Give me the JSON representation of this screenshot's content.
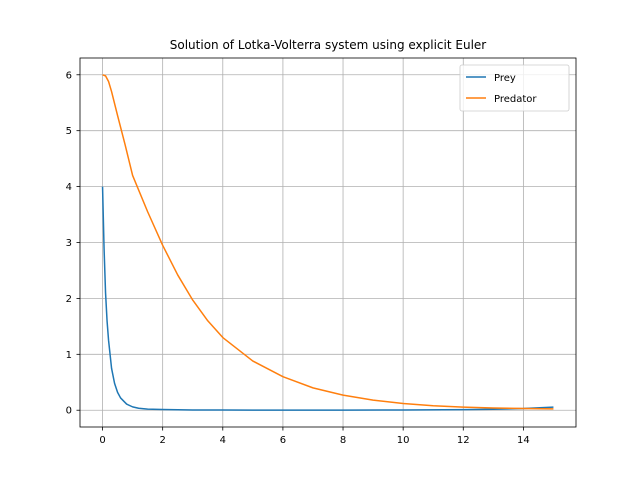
{
  "chart_data": {
    "type": "line",
    "title": "Solution of Lotka-Volterra system using explicit Euler",
    "xlabel": "",
    "ylabel": "",
    "xlim": [
      -0.75,
      15.75
    ],
    "ylim": [
      -0.3,
      6.3
    ],
    "xticks": [
      0,
      2,
      4,
      6,
      8,
      10,
      12,
      14
    ],
    "yticks": [
      0,
      1,
      2,
      3,
      4,
      5,
      6
    ],
    "grid": true,
    "legend_position": "top-right",
    "series": [
      {
        "name": "Prey",
        "color": "#1f77b4",
        "x": [
          0,
          0.05,
          0.1,
          0.15,
          0.2,
          0.3,
          0.4,
          0.5,
          0.6,
          0.8,
          1.0,
          1.2,
          1.5,
          2.0,
          2.5,
          3,
          4,
          5,
          6,
          8,
          10,
          12,
          13,
          14,
          15
        ],
        "y": [
          4.0,
          2.9,
          2.1,
          1.6,
          1.25,
          0.75,
          0.48,
          0.32,
          0.22,
          0.11,
          0.06,
          0.035,
          0.02,
          0.012,
          0.008,
          0.005,
          0.003,
          0.002,
          0.002,
          0.002,
          0.004,
          0.01,
          0.018,
          0.03,
          0.055
        ]
      },
      {
        "name": "Predator",
        "color": "#ff7f0e",
        "x": [
          0,
          0.1,
          0.2,
          0.3,
          0.5,
          0.75,
          1,
          1.5,
          2,
          2.5,
          3,
          3.5,
          4,
          5,
          6,
          7,
          8,
          9,
          10,
          11,
          12,
          13,
          14,
          15
        ],
        "y": [
          6.0,
          5.98,
          5.88,
          5.7,
          5.27,
          4.75,
          4.2,
          3.55,
          2.95,
          2.42,
          1.97,
          1.6,
          1.3,
          0.88,
          0.6,
          0.4,
          0.27,
          0.18,
          0.12,
          0.08,
          0.055,
          0.04,
          0.03,
          0.025
        ]
      }
    ]
  }
}
